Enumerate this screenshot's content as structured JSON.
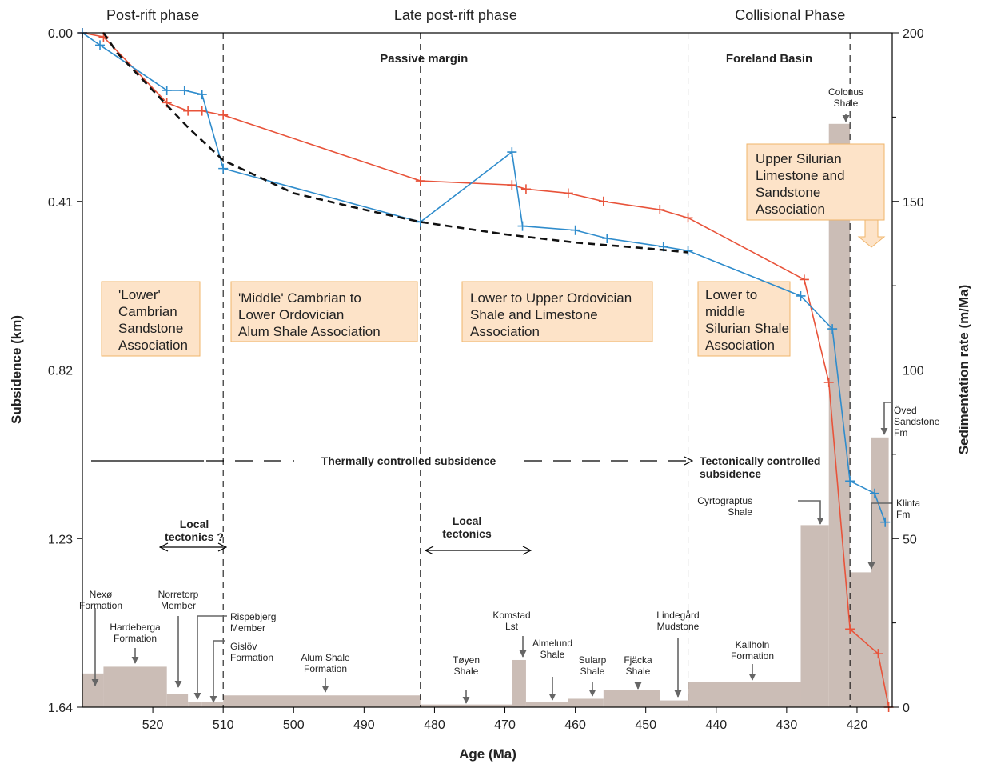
{
  "chart_data": {
    "type": "line",
    "xlabel": "Age (Ma)",
    "ylabel_left": "Subsidence (km)",
    "ylabel_right": "Sedimentation rate (m/Ma)",
    "x_reversed": true,
    "xlim": [
      530,
      415
    ],
    "xticks": [
      "520",
      "510",
      "500",
      "490",
      "480",
      "470",
      "460",
      "450",
      "440",
      "430",
      "420"
    ],
    "xtick_values": [
      520,
      510,
      500,
      490,
      480,
      470,
      460,
      450,
      440,
      430,
      420
    ],
    "ylim_left": [
      0,
      1.64
    ],
    "yticks_left": [
      "0.00",
      "0.41",
      "0.82",
      "1.23",
      "1.64"
    ],
    "ytick_left_values": [
      0,
      0.41,
      0.82,
      1.23,
      1.64
    ],
    "ylim_right": [
      0,
      200
    ],
    "yticks_right": [
      "200",
      "150",
      "100",
      "50",
      "0"
    ],
    "ytick_right_values": [
      200,
      150,
      100,
      50,
      0
    ],
    "phases": [
      "Post-rift phase",
      "Late post-rift phase",
      "Collisional Phase"
    ],
    "phase_boundaries": [
      510,
      482,
      444,
      421
    ],
    "setting_labels": [
      "Passive margin",
      "Foreland Basin"
    ],
    "series": [
      {
        "color": "#e8533a",
        "x": [
          530,
          527,
          518,
          515,
          513,
          510,
          482,
          469,
          467,
          461,
          456,
          448,
          444,
          427.5,
          424,
          421,
          417,
          415.5
        ],
        "y": [
          0,
          0.01,
          0.17,
          0.19,
          0.19,
          0.2,
          0.36,
          0.37,
          0.38,
          0.39,
          0.41,
          0.43,
          0.45,
          0.6,
          0.85,
          1.45,
          1.51,
          1.64
        ]
      },
      {
        "color": "#2f8ccc",
        "x": [
          530,
          527.5,
          518,
          515.5,
          513,
          510,
          482,
          469,
          467.5,
          460,
          455.5,
          447.5,
          444,
          428,
          423.5,
          421,
          417.5,
          416
        ],
        "y": [
          0,
          0.03,
          0.14,
          0.14,
          0.15,
          0.33,
          0.46,
          0.29,
          0.47,
          0.48,
          0.5,
          0.52,
          0.53,
          0.64,
          0.72,
          1.09,
          1.12,
          1.19
        ]
      },
      {
        "color": "#111111",
        "dashed": true,
        "x": [
          527,
          525,
          520,
          515,
          510,
          500,
          490,
          482,
          470,
          460,
          450,
          444
        ],
        "y": [
          0,
          0.05,
          0.14,
          0.23,
          0.31,
          0.39,
          0.43,
          0.46,
          0.49,
          0.51,
          0.524,
          0.534
        ]
      }
    ],
    "sedimentation_bars": [
      {
        "from": 530,
        "to": 527,
        "rate": 10
      },
      {
        "from": 527,
        "to": 518,
        "rate": 12
      },
      {
        "from": 518,
        "to": 515,
        "rate": 4
      },
      {
        "from": 515,
        "to": 513,
        "rate": 1.5
      },
      {
        "from": 513,
        "to": 510,
        "rate": 1.5
      },
      {
        "from": 510,
        "to": 482,
        "rate": 3.5
      },
      {
        "from": 482,
        "to": 469,
        "rate": 0.8
      },
      {
        "from": 469,
        "to": 467,
        "rate": 14
      },
      {
        "from": 467,
        "to": 461,
        "rate": 1.5
      },
      {
        "from": 461,
        "to": 456,
        "rate": 2.5
      },
      {
        "from": 456,
        "to": 448,
        "rate": 5
      },
      {
        "from": 448,
        "to": 444,
        "rate": 2
      },
      {
        "from": 444,
        "to": 428,
        "rate": 7.5
      },
      {
        "from": 428,
        "to": 424,
        "rate": 54
      },
      {
        "from": 424,
        "to": 421,
        "rate": 173
      },
      {
        "from": 421,
        "to": 418,
        "rate": 40
      },
      {
        "from": 418,
        "to": 415.5,
        "rate": 80
      }
    ],
    "associations": [
      {
        "lines": [
          "'Lower'",
          "Cambrian",
          "Sandstone",
          "Association"
        ]
      },
      {
        "lines": [
          "'Middle' Cambrian to",
          "Lower Ordovician",
          "Alum Shale Association"
        ]
      },
      {
        "lines": [
          "Lower to Upper Ordovician",
          "Shale and Limestone",
          "Association"
        ]
      },
      {
        "lines": [
          "Lower to",
          "middle",
          "Silurian Shale",
          "Association"
        ]
      },
      {
        "lines": [
          "Upper Silurian",
          "Limestone and",
          "Sandstone",
          "Association"
        ]
      }
    ],
    "arrows": {
      "thermal": "Thermally controlled subsidence",
      "tectonic": [
        "Tectonically controlled",
        "subsidence"
      ],
      "local1": [
        "Local",
        "tectonics ?"
      ],
      "local2": [
        "Local",
        "tectonics"
      ]
    },
    "formation_labels": [
      {
        "lines": [
          "Nexø",
          "Formation"
        ]
      },
      {
        "lines": [
          "Hardeberga",
          "Formation"
        ]
      },
      {
        "lines": [
          "Norretorp",
          "Member"
        ]
      },
      {
        "lines": [
          "Rispebjerg",
          "Member"
        ]
      },
      {
        "lines": [
          "Gislöv",
          "Formation"
        ]
      },
      {
        "lines": [
          "Alum Shale",
          "Formation"
        ]
      },
      {
        "lines": [
          "Tøyen",
          "Shale"
        ]
      },
      {
        "lines": [
          "Komstad",
          "Lst"
        ]
      },
      {
        "lines": [
          "Almelund",
          "Shale"
        ]
      },
      {
        "lines": [
          "Sularp",
          "Shale"
        ]
      },
      {
        "lines": [
          "Fjäcka",
          "Shale"
        ]
      },
      {
        "lines": [
          "Lindegård",
          "Mudstone"
        ]
      },
      {
        "lines": [
          "Kallholn",
          "Formation"
        ]
      },
      {
        "lines": [
          "Cyrtograptus",
          "Shale"
        ]
      },
      {
        "lines": [
          "Colonus",
          "Shale"
        ]
      },
      {
        "lines": [
          "Öved",
          "Sandstone",
          "Fm"
        ]
      },
      {
        "lines": [
          "Klinta",
          "Fm"
        ]
      }
    ]
  }
}
